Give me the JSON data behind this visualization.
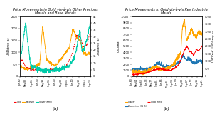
{
  "title_a": "Price Movements in Gold vis-à-vis Other Precious\nMetals and Base Metals",
  "title_b": "Price Movements in Gold vis-à-vis Key Industrial\nMetals",
  "panel_a": {
    "x_labels": [
      "Jan-80",
      "May-83",
      "Sep-86",
      "Jan-90",
      "May-93",
      "Sep-96",
      "Jan-00",
      "May-03",
      "Sep-06",
      "Jan-10",
      "May-13",
      "Sep-16",
      "Sep-20"
    ],
    "ylabel_left": "USD/troy oz",
    "ylabel_right": "USD/troy oz",
    "ylim_left": [
      0,
      2500
    ],
    "ylim_right": [
      0,
      45
    ],
    "yticks_left": [
      0,
      500,
      1000,
      1500,
      2000,
      2500
    ],
    "yticks_right": [
      0,
      5,
      10,
      15,
      20,
      25,
      30,
      35,
      40,
      45
    ]
  },
  "panel_b": {
    "x_labels": [
      "Jan-60",
      "May-64",
      "Sep-68",
      "Jan-73",
      "May-77",
      "Sep-81",
      "Jan-86",
      "May-90",
      "Sep-94",
      "Jan-99",
      "May-03",
      "Sep-07",
      "Jun-12",
      "May-16",
      "Sep-21"
    ],
    "ylabel_left": "USD/mt",
    "ylabel_right": "USD/mt; USD/troy oz",
    "ylim_left": [
      0,
      10000
    ],
    "ylim_right": [
      0,
      4000
    ],
    "yticks_left": [
      0,
      1000,
      2000,
      3000,
      4000,
      5000,
      6000,
      7000,
      8000,
      9000,
      10000
    ],
    "yticks_right": [
      0,
      500,
      1000,
      1500,
      2000,
      2500,
      3000,
      3500,
      4000
    ]
  },
  "gold_color": "#ff0000",
  "platinum_color": "#ffa500",
  "silver_color": "#00ccaa",
  "copper_color": "#ffa500",
  "aluminium_color": "#1f77b4",
  "sublabel_a": "(a)",
  "sublabel_b": "(b)"
}
